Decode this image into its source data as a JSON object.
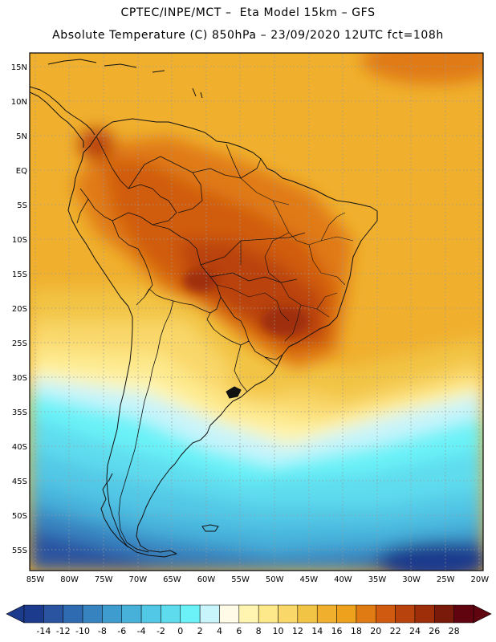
{
  "header": {
    "line1": "CPTEC/INPE/MCT –  Eta Model 15km – GFS",
    "line2": "Absolute Temperature (C) 850hPa – 23/09/2020 12UTC fct=108h"
  },
  "map": {
    "lat_labels": [
      "15N",
      "10N",
      "5N",
      "EQ",
      "5S",
      "10S",
      "15S",
      "20S",
      "25S",
      "30S",
      "35S",
      "40S",
      "45S",
      "50S",
      "55S"
    ],
    "lon_labels": [
      "85W",
      "80W",
      "75W",
      "70W",
      "65W",
      "60W",
      "55W",
      "50W",
      "45W",
      "40W",
      "35W",
      "30W",
      "25W",
      "20W"
    ],
    "lat_range": [
      18,
      -58
    ],
    "lon_range": [
      -87,
      -20
    ]
  },
  "colorbar": {
    "levels": [
      "-14",
      "-12",
      "-10",
      "-8",
      "-6",
      "-4",
      "-2",
      "0",
      "2",
      "4",
      "6",
      "8",
      "10",
      "12",
      "14",
      "16",
      "18",
      "20",
      "22",
      "24",
      "26",
      "28"
    ],
    "colors": [
      "#1d3b8c",
      "#2a53a0",
      "#2f6bb0",
      "#3783c0",
      "#3f9ccf",
      "#47b1da",
      "#52c8e6",
      "#5edcee",
      "#6af2f8",
      "#c8f4fb",
      "#fffbe6",
      "#fff5b0",
      "#fde88a",
      "#f9d769",
      "#f2c445",
      "#f0b02e",
      "#eea11c",
      "#e07a12",
      "#d05b10",
      "#b9430d",
      "#9e2e0a",
      "#7a1a0a",
      "#600510"
    ],
    "underflow_color": "#1d3b8c",
    "overflow_color": "#600510"
  }
}
